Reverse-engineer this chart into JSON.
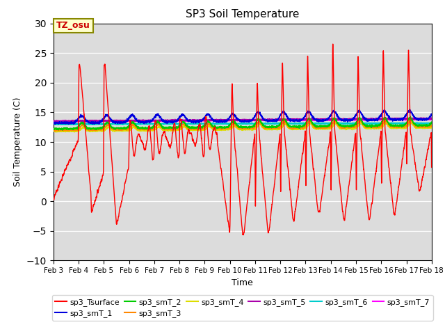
{
  "title": "SP3 Soil Temperature",
  "xlabel": "Time",
  "ylabel": "Soil Temperature (C)",
  "ylim": [
    -10,
    30
  ],
  "xlim": [
    0,
    15
  ],
  "background_color": "#dcdcdc",
  "tz_label": "TZ_osu",
  "series_colors": {
    "sp3_Tsurface": "#ff0000",
    "sp3_smT_1": "#0000dd",
    "sp3_smT_2": "#00cc00",
    "sp3_smT_3": "#ff8800",
    "sp3_smT_4": "#dddd00",
    "sp3_smT_5": "#aa00aa",
    "sp3_smT_6": "#00cccc",
    "sp3_smT_7": "#ff00ff"
  },
  "xtick_labels": [
    "Feb 3",
    "Feb 4",
    "Feb 5",
    "Feb 6",
    "Feb 7",
    "Feb 8",
    "Feb 9",
    "Feb 10",
    "Feb 11",
    "Feb 12",
    "Feb 13",
    "Feb 14",
    "Feb 15",
    "Feb 16",
    "Feb 17",
    "Feb 18"
  ],
  "xtick_positions": [
    0,
    1,
    2,
    3,
    4,
    5,
    6,
    7,
    8,
    9,
    10,
    11,
    12,
    13,
    14,
    15
  ]
}
